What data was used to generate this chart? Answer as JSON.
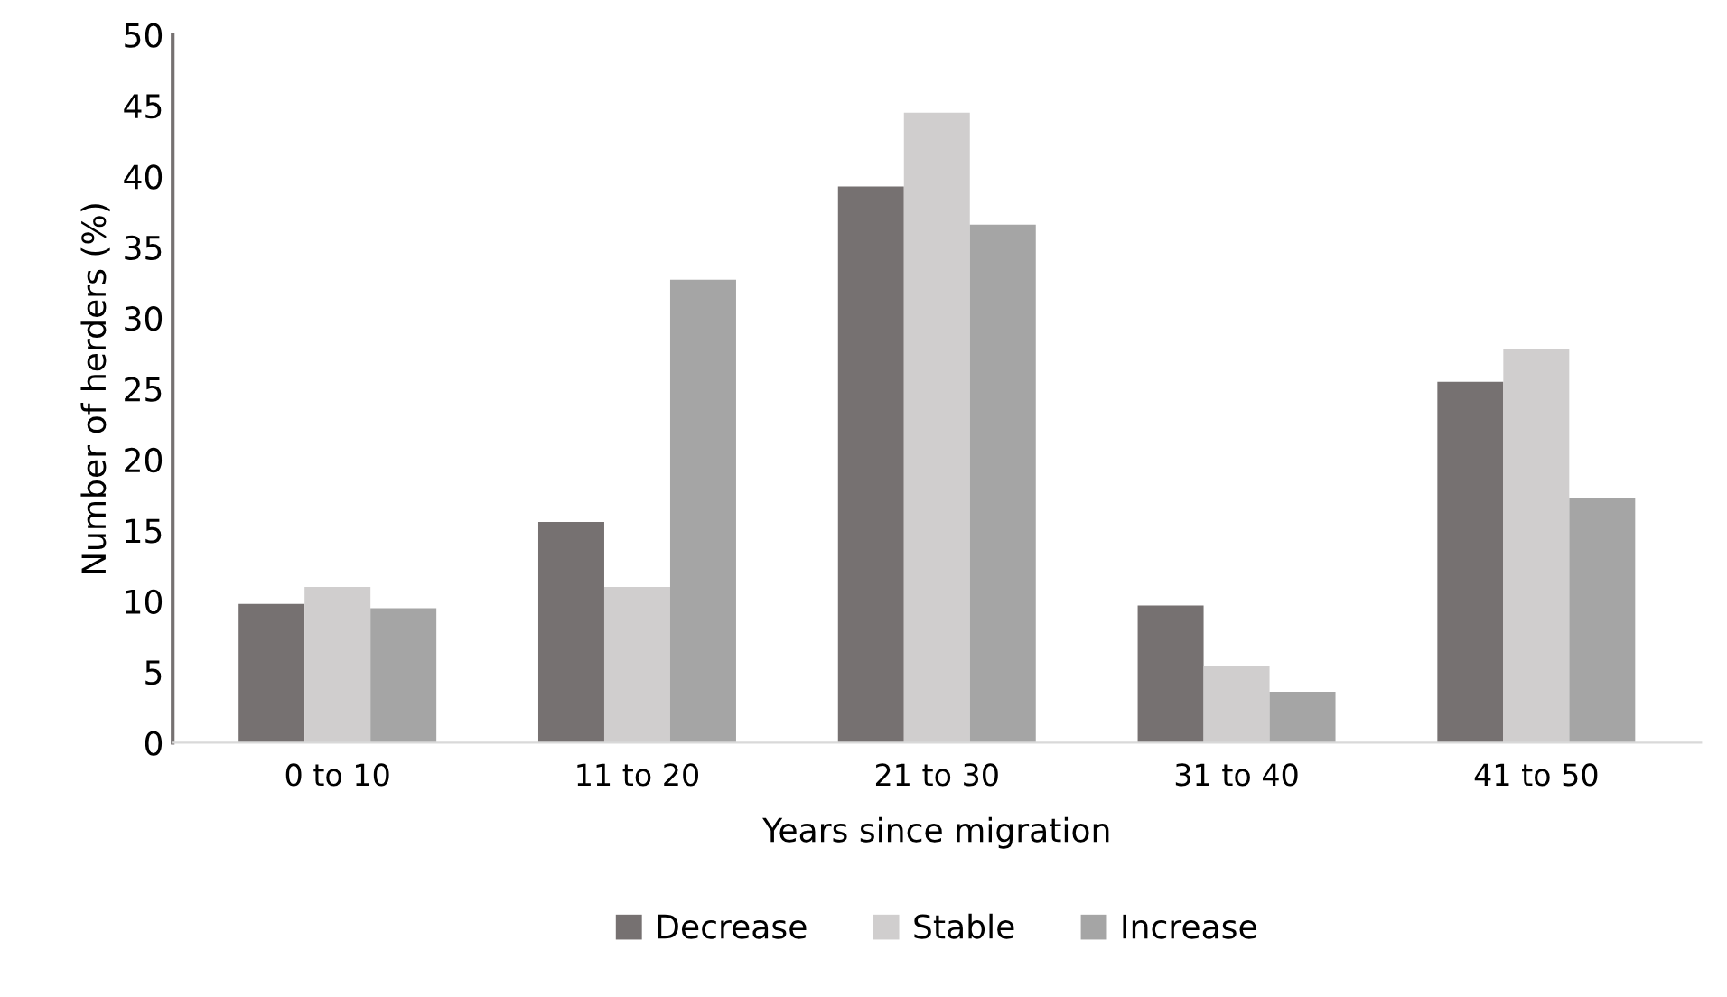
{
  "chart_data": {
    "type": "bar",
    "xlabel": "Years since migration",
    "ylabel": "Number of herders (%)",
    "categories": [
      "0 to 10",
      "11 to 20",
      "21 to 30",
      "31 to 40",
      "41 to 50"
    ],
    "series": [
      {
        "name": "Decrease",
        "color": "#767171",
        "values": [
          9.8,
          15.6,
          39.3,
          9.7,
          25.5
        ]
      },
      {
        "name": "Stable",
        "color": "#d0cece",
        "values": [
          11.0,
          11.0,
          44.5,
          5.4,
          27.8
        ]
      },
      {
        "name": "Increase",
        "color": "#a5a5a5",
        "values": [
          9.5,
          32.7,
          36.6,
          3.6,
          17.3
        ]
      }
    ],
    "ylim": [
      0,
      50
    ],
    "yticks": [
      0,
      5,
      10,
      15,
      20,
      25,
      30,
      35,
      40,
      45,
      50
    ],
    "grid": false,
    "legend": "bottom"
  }
}
